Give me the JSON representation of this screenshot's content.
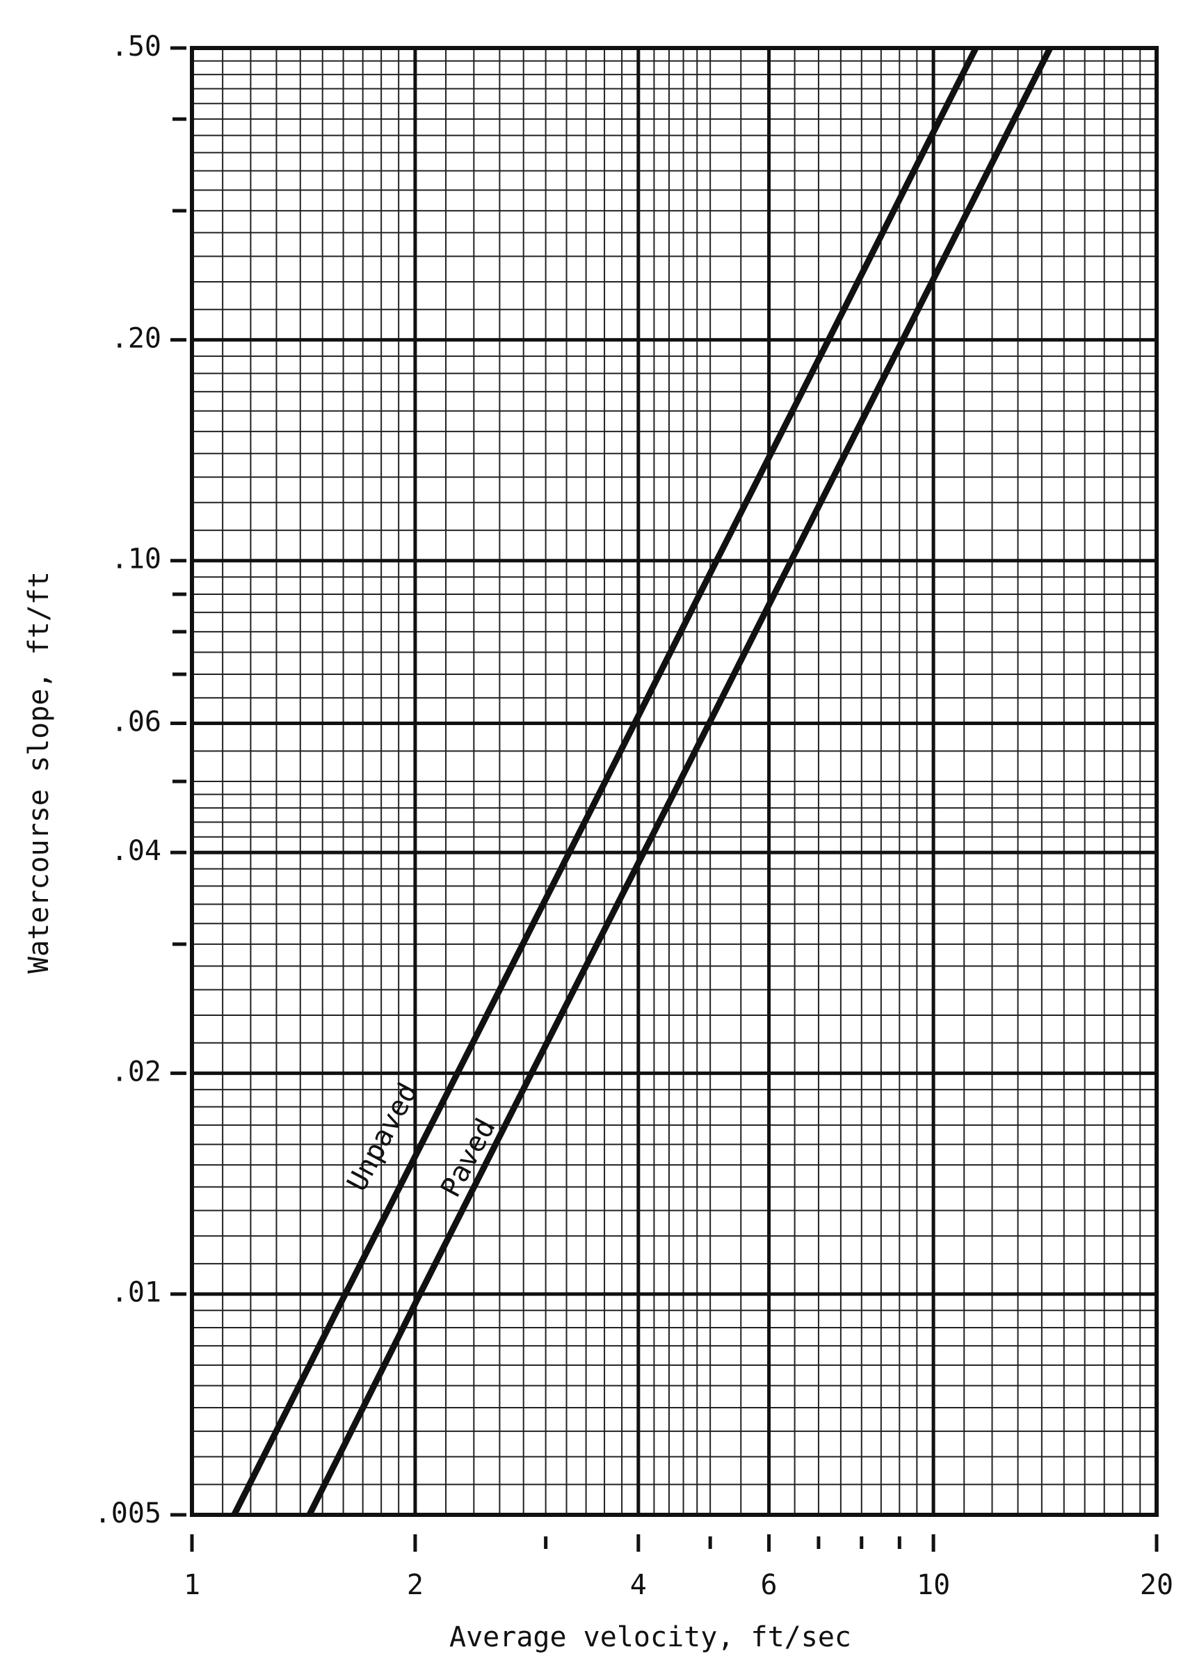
{
  "chart_data": {
    "type": "line",
    "xlabel": "Average velocity, ft/sec",
    "ylabel": "Watercourse slope, ft/ft",
    "x_log": true,
    "y_log": true,
    "grid": true,
    "xlim": [
      1,
      20
    ],
    "ylim": [
      0.005,
      0.5
    ],
    "xticks": [
      1,
      2,
      4,
      6,
      10,
      20
    ],
    "xminor_ticks": [
      3,
      5,
      7,
      8,
      9
    ],
    "yticks": [
      {
        "value": 0.5,
        "label": ".50"
      },
      {
        "value": 0.2,
        "label": ".20"
      },
      {
        "value": 0.1,
        "label": ".10"
      },
      {
        "value": 0.06,
        "label": ".06"
      },
      {
        "value": 0.04,
        "label": ".04"
      },
      {
        "value": 0.02,
        "label": ".02"
      },
      {
        "value": 0.01,
        "label": ".01"
      },
      {
        "value": 0.005,
        "label": ".005"
      }
    ],
    "yminor_ticks": [
      0.4,
      0.3,
      0.09,
      0.08,
      0.07,
      0.05,
      0.03
    ],
    "series": [
      {
        "name": "Unpaved",
        "color": "#111111",
        "x": [
          1.14,
          1.61,
          2.28,
          3.61,
          5.1,
          7.22,
          11.41
        ],
        "values": [
          0.005,
          0.01,
          0.02,
          0.05,
          0.1,
          0.2,
          0.5
        ]
      },
      {
        "name": "Paved",
        "color": "#111111",
        "x": [
          1.44,
          2.03,
          2.87,
          4.55,
          6.43,
          9.09,
          14.37
        ],
        "values": [
          0.005,
          0.01,
          0.02,
          0.05,
          0.1,
          0.2,
          0.5
        ]
      }
    ]
  }
}
